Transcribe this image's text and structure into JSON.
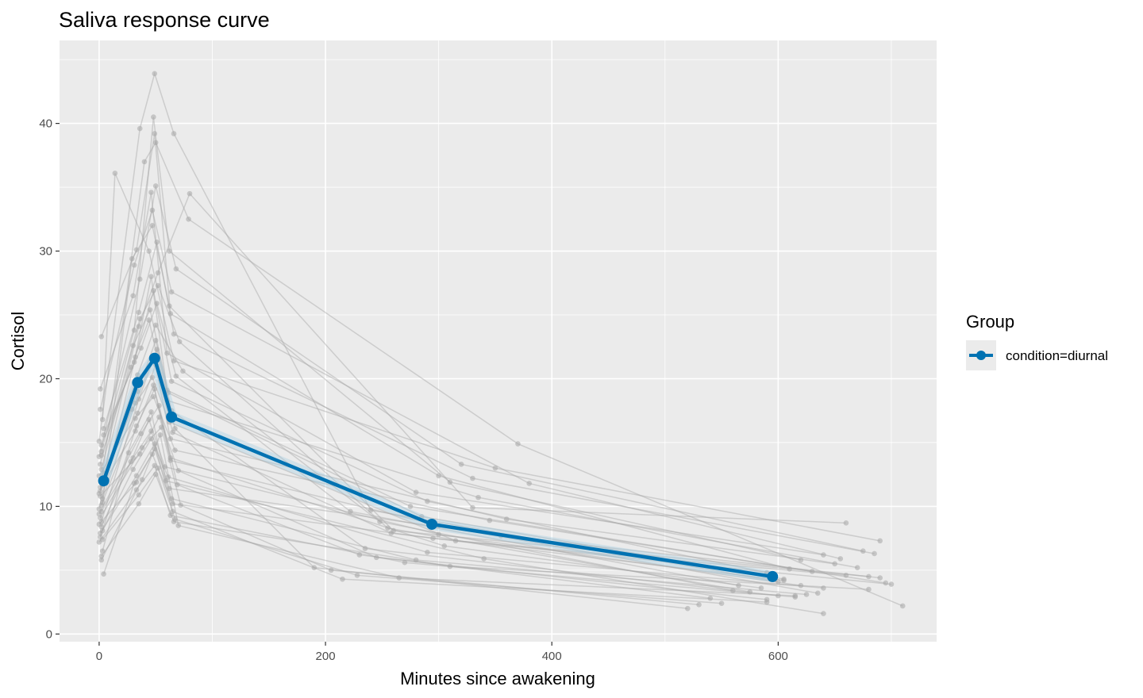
{
  "chart_data": {
    "type": "line",
    "title": "Saliva response curve",
    "xlabel": "Minutes since awakening",
    "ylabel": "Cortisol",
    "xlim": [
      -35,
      740
    ],
    "ylim": [
      -0.6,
      46.5
    ],
    "x_ticks": [
      0,
      200,
      400,
      600
    ],
    "x_tick_labels": [
      "0",
      "200",
      "400",
      "600"
    ],
    "y_ticks": [
      0,
      10,
      20,
      30,
      40
    ],
    "y_tick_labels": [
      "0",
      "10",
      "20",
      "30",
      "40"
    ],
    "grid": true,
    "legend": {
      "title": "Group",
      "position": "right",
      "entries": [
        "condition=diurnal"
      ]
    },
    "colors": {
      "panel_background": "#ebebeb",
      "grid": "#ffffff",
      "individual_lines": "#a6a6a6",
      "mean_line": "#0072b2"
    },
    "series": [
      {
        "name": "condition=diurnal",
        "x": [
          4,
          34,
          49,
          64,
          294,
          595
        ],
        "y": [
          12.0,
          19.7,
          21.6,
          17.0,
          8.6,
          4.5
        ]
      }
    ],
    "individual_trajectories": [
      {
        "x": [
          2,
          33,
          49,
          63,
          300,
          610
        ],
        "y": [
          23.3,
          30.1,
          39.2,
          25.1,
          12.4,
          5.1
        ]
      },
      {
        "x": [
          1,
          30,
          46,
          60,
          280,
          640
        ],
        "y": [
          19.2,
          26.5,
          34.6,
          22.0,
          11.1,
          6.2
        ]
      },
      {
        "x": [
          3,
          14,
          44,
          66,
          350,
          690
        ],
        "y": [
          16.8,
          36.1,
          30.0,
          21.4,
          13.0,
          7.3
        ]
      },
      {
        "x": [
          0,
          36,
          49,
          66,
          240,
          600
        ],
        "y": [
          15.1,
          39.6,
          43.9,
          39.2,
          9.7,
          4.1
        ]
      },
      {
        "x": [
          2,
          31,
          48,
          62,
          310,
          620
        ],
        "y": [
          14.3,
          23.8,
          40.5,
          30.0,
          11.9,
          5.8
        ]
      },
      {
        "x": [
          4,
          35,
          52,
          80,
          330,
          660
        ],
        "y": [
          12.6,
          24.1,
          28.3,
          34.5,
          9.9,
          8.7
        ]
      },
      {
        "x": [
          1,
          40,
          50,
          79,
          370,
          710
        ],
        "y": [
          11.2,
          37.0,
          38.5,
          32.5,
          14.9,
          2.2
        ]
      },
      {
        "x": [
          3,
          29,
          47,
          62,
          260,
          680
        ],
        "y": [
          10.3,
          29.4,
          32.0,
          25.7,
          8.1,
          4.5
        ]
      },
      {
        "x": [
          0,
          32,
          48,
          64,
          290,
          590
        ],
        "y": [
          9.8,
          21.7,
          26.9,
          19.8,
          10.4,
          4.8
        ]
      },
      {
        "x": [
          2,
          35,
          51,
          67,
          190,
          520
        ],
        "y": [
          8.8,
          18.4,
          22.3,
          16.1,
          5.2,
          2.0
        ]
      },
      {
        "x": [
          1,
          33,
          49,
          63,
          305,
          585
        ],
        "y": [
          7.6,
          16.3,
          19.2,
          13.8,
          6.9,
          3.6
        ]
      },
      {
        "x": [
          3,
          26,
          46,
          59,
          340,
          640
        ],
        "y": [
          6.5,
          14.2,
          17.4,
          12.0,
          5.9,
          1.6
        ]
      },
      {
        "x": [
          2,
          38,
          54,
          70,
          265,
          615
        ],
        "y": [
          5.8,
          12.1,
          15.6,
          8.5,
          4.4,
          3.0
        ]
      },
      {
        "x": [
          4,
          31,
          47,
          65,
          295,
          700
        ],
        "y": [
          4.7,
          11.8,
          14.1,
          10.2,
          7.5,
          3.9
        ]
      },
      {
        "x": [
          0,
          36,
          50,
          68,
          320,
          675
        ],
        "y": [
          13.9,
          27.8,
          35.1,
          28.6,
          13.3,
          6.5
        ]
      },
      {
        "x": [
          2,
          30,
          45,
          61,
          285,
          605
        ],
        "y": [
          12.9,
          22.6,
          25.4,
          18.9,
          9.2,
          4.3
        ]
      },
      {
        "x": [
          1,
          34,
          50,
          74,
          248,
          560
        ],
        "y": [
          11.5,
          20.3,
          24.2,
          20.6,
          8.8,
          3.4
        ]
      },
      {
        "x": [
          3,
          32,
          48,
          63,
          360,
          650
        ],
        "y": [
          10.6,
          18.1,
          21.8,
          15.3,
          9.0,
          5.5
        ]
      },
      {
        "x": [
          0,
          37,
          53,
          69,
          230,
          540
        ],
        "y": [
          9.4,
          15.7,
          17.9,
          11.7,
          6.2,
          2.8
        ]
      },
      {
        "x": [
          2,
          28,
          44,
          58,
          300,
          620
        ],
        "y": [
          8.4,
          13.5,
          16.8,
          13.1,
          7.8,
          3.8
        ]
      },
      {
        "x": [
          1,
          33,
          49,
          65,
          215,
          590
        ],
        "y": [
          7.9,
          12.4,
          14.9,
          9.6,
          4.3,
          2.5
        ]
      },
      {
        "x": [
          4,
          35,
          51,
          66,
          330,
          685
        ],
        "y": [
          16.1,
          25.2,
          30.7,
          23.5,
          12.2,
          6.3
        ]
      },
      {
        "x": [
          2,
          31,
          46,
          60,
          275,
          630
        ],
        "y": [
          14.8,
          21.3,
          28.0,
          19.1,
          10.0,
          4.9
        ]
      },
      {
        "x": [
          1,
          36,
          52,
          71,
          255,
          575
        ],
        "y": [
          13.3,
          24.7,
          27.3,
          22.9,
          8.3,
          3.3
        ]
      },
      {
        "x": [
          3,
          29,
          47,
          62,
          315,
          660
        ],
        "y": [
          12.2,
          17.6,
          20.1,
          16.6,
          7.3,
          4.6
        ]
      },
      {
        "x": [
          0,
          34,
          50,
          64,
          235,
          600
        ],
        "y": [
          11.0,
          19.0,
          23.0,
          17.5,
          6.7,
          3.0
        ]
      },
      {
        "x": [
          2,
          32,
          48,
          67,
          345,
          695
        ],
        "y": [
          10.1,
          16.9,
          18.6,
          14.4,
          8.9,
          4.0
        ]
      },
      {
        "x": [
          1,
          38,
          55,
          72,
          205,
          530
        ],
        "y": [
          9.1,
          14.6,
          16.2,
          10.1,
          5.0,
          2.3
        ]
      },
      {
        "x": [
          3,
          30,
          46,
          61,
          290,
          640
        ],
        "y": [
          8.1,
          12.9,
          15.3,
          12.3,
          6.4,
          3.6
        ]
      },
      {
        "x": [
          0,
          33,
          49,
          63,
          270,
          615
        ],
        "y": [
          7.2,
          11.3,
          13.2,
          9.3,
          5.6,
          2.9
        ]
      },
      {
        "x": [
          2,
          35,
          50,
          66,
          310,
          680
        ],
        "y": [
          6.1,
          10.2,
          12.5,
          8.8,
          5.3,
          3.5
        ]
      },
      {
        "x": [
          1,
          31,
          47,
          64,
          380,
          655
        ],
        "y": [
          17.6,
          28.9,
          33.2,
          26.8,
          11.8,
          5.9
        ]
      },
      {
        "x": [
          4,
          37,
          51,
          68,
          222,
          565
        ],
        "y": [
          15.6,
          22.4,
          25.9,
          20.2,
          9.6,
          3.8
        ]
      },
      {
        "x": [
          2,
          28,
          44,
          60,
          335,
          670
        ],
        "y": [
          14.0,
          20.9,
          24.6,
          18.3,
          10.7,
          5.2
        ]
      },
      {
        "x": [
          0,
          34,
          50,
          65,
          258,
          605
        ],
        "y": [
          12.4,
          17.3,
          21.1,
          15.8,
          7.9,
          4.2
        ]
      },
      {
        "x": [
          3,
          32,
          48,
          63,
          300,
          635
        ],
        "y": [
          11.7,
          15.9,
          19.5,
          13.6,
          8.5,
          3.2
        ]
      },
      {
        "x": [
          1,
          36,
          53,
          70,
          245,
          590
        ],
        "y": [
          10.8,
          14.1,
          17.0,
          12.8,
          6.0,
          2.7
        ]
      },
      {
        "x": [
          2,
          30,
          46,
          62,
          355,
          690
        ],
        "y": [
          9.6,
          13.8,
          15.9,
          11.4,
          7.7,
          4.4
        ]
      },
      {
        "x": [
          0,
          33,
          49,
          64,
          280,
          625
        ],
        "y": [
          8.6,
          11.9,
          14.5,
          10.6,
          5.8,
          3.1
        ]
      },
      {
        "x": [
          3,
          35,
          52,
          67,
          228,
          550
        ],
        "y": [
          7.4,
          10.9,
          13.0,
          9.0,
          4.6,
          2.4
        ]
      }
    ]
  }
}
